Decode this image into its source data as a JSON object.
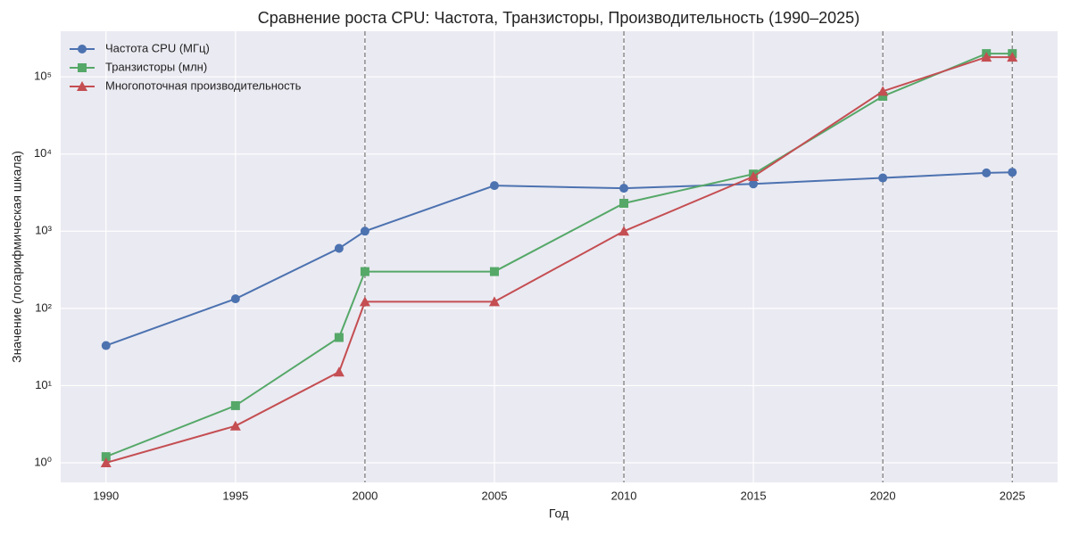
{
  "chart_data": {
    "type": "line",
    "title": "Сравнение роста CPU: Частота, Транзисторы, Производительность (1990–2025)",
    "xlabel": "Год",
    "ylabel": "Значение (логарифмическая шкала)",
    "x": [
      1990,
      1995,
      1999,
      2000,
      2005,
      2010,
      2015,
      2020,
      2024,
      2025
    ],
    "series": [
      {
        "name": "Частота CPU (МГц)",
        "color": "#4c72b0",
        "marker": "circle",
        "values": [
          33,
          133,
          600,
          1000,
          3900,
          3600,
          4100,
          4900,
          5700,
          5800
        ]
      },
      {
        "name": "Транзисторы (млн)",
        "color": "#55a868",
        "marker": "square",
        "values": [
          1.2,
          5.5,
          42,
          300,
          300,
          2300,
          5500,
          56000,
          200000,
          200000
        ]
      },
      {
        "name": "Многопоточная производительность",
        "color": "#c44e52",
        "marker": "triangle",
        "values": [
          1,
          3,
          15,
          122,
          122,
          1000,
          5100,
          65000,
          180000,
          180000
        ]
      }
    ],
    "xlim": [
      1988.25,
      2026.75
    ],
    "xticks": [
      1990,
      1995,
      2000,
      2005,
      2010,
      2015,
      2020,
      2025
    ],
    "ylim": [
      0.557,
      390000
    ],
    "yscale": "log",
    "yticks": [
      {
        "value": 1,
        "label": "10⁰"
      },
      {
        "value": 10,
        "label": "10¹"
      },
      {
        "value": 100,
        "label": "10²"
      },
      {
        "value": 1000,
        "label": "10³"
      },
      {
        "value": 10000,
        "label": "10⁴"
      },
      {
        "value": 100000,
        "label": "10⁵"
      }
    ],
    "vlines": [
      2000,
      2010,
      2020,
      2025
    ],
    "grid": true,
    "legend": "upper left"
  }
}
